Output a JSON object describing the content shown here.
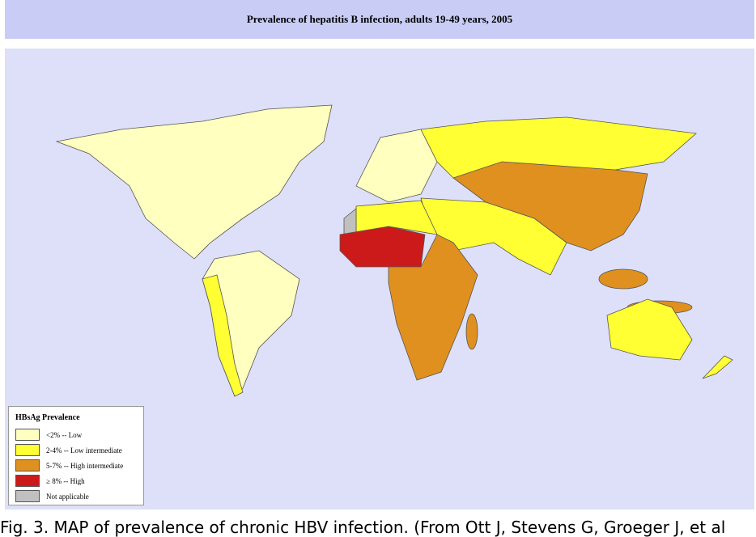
{
  "header": {
    "title": "Prevalence of hepatitis B infection, adults 19-49 years, 2005"
  },
  "legend": {
    "title": "HBsAg Prevalence",
    "items": [
      {
        "label": "<2% -- Low",
        "color": "#ffffc0"
      },
      {
        "label": "2-4% -- Low intermediate",
        "color": "#ffff33"
      },
      {
        "label": "5-7% -- High intermediate",
        "color": "#e0901e"
      },
      {
        "label": "≥ 8% -- High",
        "color": "#cc1a1a"
      },
      {
        "label": "Not applicable",
        "color": "#c0c0c0"
      }
    ]
  },
  "caption": "Fig. 3. MAP of prevalence of chronic HBV infection. (From Ott J, Stevens G, Groeger J, et al"
}
